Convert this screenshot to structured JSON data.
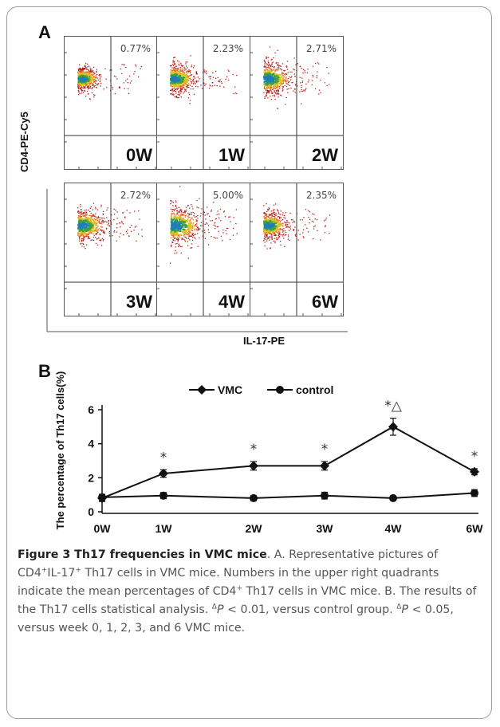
{
  "panel_a": {
    "letter": "A",
    "y_axis_label": "CD4-PE-Cy5",
    "x_axis_label": "IL-17-PE",
    "plots": [
      {
        "week": "0W",
        "percent": "0.77%"
      },
      {
        "week": "1W",
        "percent": "2.23%"
      },
      {
        "week": "2W",
        "percent": "2.71%"
      },
      {
        "week": "3W",
        "percent": "2.72%"
      },
      {
        "week": "4W",
        "percent": "5.00%"
      },
      {
        "week": "6W",
        "percent": "2.35%"
      }
    ]
  },
  "panel_b": {
    "letter": "B"
  },
  "chart_data": {
    "type": "line",
    "categories": [
      "0W",
      "1W",
      "2W",
      "3W",
      "4W",
      "6W"
    ],
    "ylabel": "The percentage of Th17 cells(%)",
    "xlabel": "",
    "ylim": [
      0,
      6
    ],
    "yticks": [
      "0",
      "2",
      "4",
      "6"
    ],
    "legend_position": "top",
    "series": [
      {
        "name": "VMC",
        "marker": "diamond",
        "values": [
          0.8,
          2.25,
          2.7,
          2.7,
          5.0,
          2.35
        ],
        "errors": [
          0.2,
          0.22,
          0.25,
          0.25,
          0.5,
          0.18
        ]
      },
      {
        "name": "control",
        "marker": "circle",
        "values": [
          0.85,
          0.95,
          0.8,
          0.95,
          0.8,
          1.1
        ],
        "errors": [
          0.18,
          0.18,
          0.15,
          0.2,
          0.12,
          0.2
        ]
      }
    ],
    "annotations": [
      {
        "category": "1W",
        "text": "*"
      },
      {
        "category": "2W",
        "text": "*"
      },
      {
        "category": "3W",
        "text": "*"
      },
      {
        "category": "4W",
        "text": "*△"
      },
      {
        "category": "6W",
        "text": "*"
      }
    ]
  },
  "caption": {
    "title": "Figure 3 Th17 frequencies in VMC mice",
    "part1": ". A. Representative pictures of CD4",
    "sup_plus": "+",
    "part2": "IL-17",
    "part3": " Th17 cells in VMC mice. Numbers in the upper right quadrants indicate the mean percentages of CD4",
    "part4": " Th17 cells in VMC mice. B. The results of the Th17 cells statistical analysis. ",
    "delta": "Δ",
    "p": "P",
    "part5": " < 0.01, versus control group. ",
    "part6": " < 0.05, versus week 0, 1, 2, 3, and 6 VMC mice."
  }
}
